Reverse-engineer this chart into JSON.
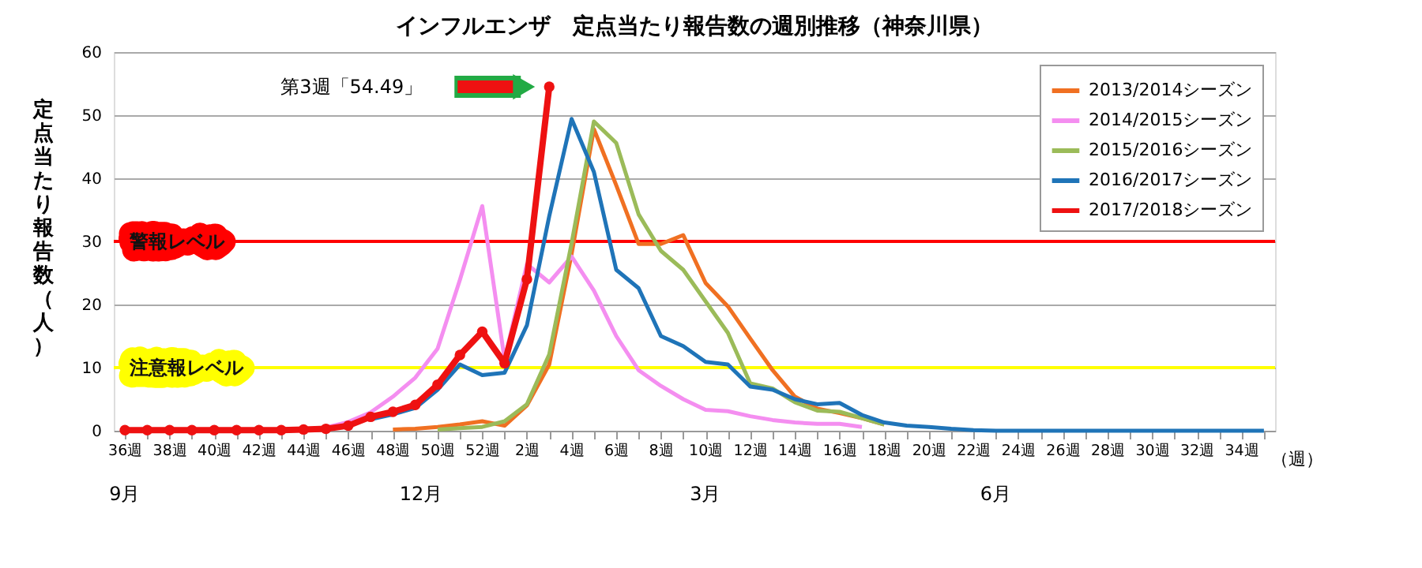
{
  "chart_data": {
    "type": "line",
    "title": "インフルエンザ　定点当たり報告数の週別推移（神奈川県）",
    "ylabel": "定点当たり報告数（人）",
    "xlabel": "（週）",
    "categories": [
      "36週",
      null,
      "38週",
      null,
      "40週",
      null,
      "42週",
      null,
      "44週",
      null,
      "46週",
      null,
      "48週",
      null,
      "50週",
      null,
      "52週",
      null,
      "2週",
      null,
      "4週",
      null,
      "6週",
      null,
      "8週",
      null,
      "10週",
      null,
      "12週",
      null,
      "14週",
      null,
      "16週",
      null,
      "18週",
      null,
      "20週",
      null,
      "22週",
      null,
      "24週",
      null,
      "26週",
      null,
      "28週",
      null,
      "30週",
      null,
      "32週",
      null,
      "34週",
      null
    ],
    "series": [
      {
        "name": "2013/2014シーズン",
        "color": "#f07022",
        "marker": "none",
        "values": [
          null,
          null,
          null,
          null,
          null,
          null,
          null,
          null,
          null,
          null,
          null,
          null,
          0.2,
          0.3,
          0.6,
          1,
          1.5,
          0.8,
          4,
          10.5,
          28,
          47.8,
          38.9,
          29.6,
          29.6,
          31,
          23.4,
          19.7,
          14.6,
          9.6,
          5.4,
          3.5,
          2.8,
          2,
          1,
          null,
          null,
          null,
          null,
          null,
          null,
          null,
          null,
          null,
          null,
          null,
          null,
          null,
          null,
          null,
          null,
          null
        ]
      },
      {
        "name": "2014/2015シーズン",
        "color": "#f48ef0",
        "marker": "none",
        "values": [
          null,
          null,
          null,
          null,
          null,
          null,
          null,
          null,
          null,
          0.5,
          1.4,
          2.9,
          5.4,
          8.4,
          13,
          23.9,
          35.6,
          11.3,
          26.4,
          23.5,
          27.6,
          22.2,
          15,
          9.6,
          7.1,
          5,
          3.3,
          3.1,
          2.3,
          1.7,
          1.3,
          1.1,
          1.1,
          0.6,
          null,
          null,
          null,
          null,
          null,
          null,
          null,
          null,
          null,
          null,
          null,
          null,
          null,
          null,
          null,
          null,
          null,
          null
        ]
      },
      {
        "name": "2015/2016シーズン",
        "color": "#9bbb59",
        "marker": "none",
        "values": [
          null,
          null,
          null,
          null,
          null,
          null,
          null,
          null,
          null,
          null,
          null,
          null,
          null,
          null,
          0.2,
          0.4,
          0.6,
          1.5,
          4.2,
          12.1,
          29.7,
          49,
          45.6,
          34.3,
          28.5,
          25.5,
          20.5,
          15.5,
          7.5,
          6.7,
          4.5,
          3.2,
          3,
          2,
          1,
          null,
          null,
          null,
          null,
          null,
          null,
          null,
          null,
          null,
          null,
          null,
          null,
          null,
          null,
          null,
          null,
          null
        ]
      },
      {
        "name": "2016/2017シーズン",
        "color": "#1f74b8",
        "marker": "none",
        "values": [
          null,
          null,
          null,
          null,
          null,
          null,
          null,
          null,
          null,
          null,
          null,
          1.8,
          2.6,
          3.6,
          6.5,
          10.5,
          8.8,
          9.2,
          16.7,
          34,
          49.4,
          41,
          25.5,
          22.6,
          15,
          13.4,
          10.9,
          10.5,
          7,
          6.5,
          5,
          4.2,
          4.4,
          2.5,
          1.3,
          0.8,
          0.6,
          0.3,
          0.1,
          0,
          0,
          0,
          0,
          0,
          0,
          0,
          0,
          0,
          0,
          0,
          0,
          0
        ]
      },
      {
        "name": "2017/2018シーズン",
        "color": "#ee1111",
        "marker": "circle",
        "values": [
          0.1,
          0.1,
          0.1,
          0.1,
          0.1,
          0.1,
          0.1,
          0.1,
          0.2,
          0.3,
          0.8,
          2.2,
          3,
          4.1,
          7.3,
          12,
          15.7,
          10.7,
          24,
          54.49,
          null,
          null,
          null,
          null,
          null,
          null,
          null,
          null,
          null,
          null,
          null,
          null,
          null,
          null,
          null,
          null,
          null,
          null,
          null,
          null,
          null,
          null,
          null,
          null,
          null,
          null,
          null,
          null,
          null,
          null,
          null,
          null
        ]
      }
    ],
    "ylim": [
      0,
      60
    ],
    "yticks": [
      0,
      10,
      20,
      30,
      40,
      50,
      60
    ],
    "grid": "y",
    "legend": "top right",
    "ref_lines": [
      {
        "axis": "y",
        "value": 30,
        "label": "警報レベル",
        "color": "#ff0000"
      },
      {
        "axis": "y",
        "value": 10,
        "label": "注意報レベル",
        "color": "#ffff00"
      }
    ],
    "annotations": [
      "第3週「54.49」",
      "9月",
      "12月",
      "3月",
      "6月"
    ]
  }
}
